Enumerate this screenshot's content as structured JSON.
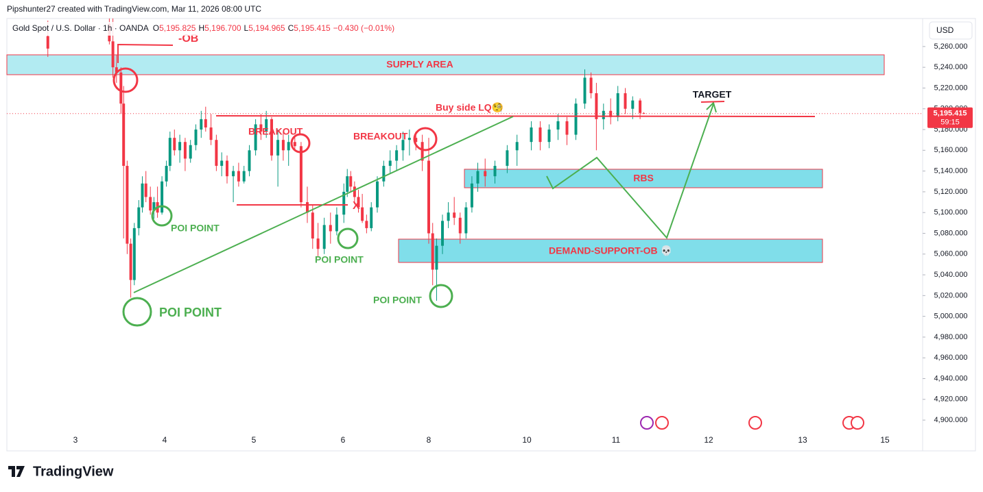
{
  "header": {
    "credit": "Pipshunter27 created with TradingView.com, Mar 11, 2026 08:00 UTC",
    "symbol": "Gold Spot / U.S. Dollar · 1h · OANDA",
    "ohlc": [
      [
        "O",
        "5,195.825"
      ],
      [
        "H",
        "5,196.700"
      ],
      [
        "L",
        "5,194.965"
      ],
      [
        "C",
        "5,195.415"
      ]
    ],
    "change": "−0.430 (−0.01%)"
  },
  "chart_data": {
    "type": "candlestick",
    "x": [
      2.69,
      3.38,
      3.42,
      3.46,
      3.51,
      3.54,
      3.58,
      3.62,
      3.66,
      3.71,
      3.75,
      3.79,
      3.84,
      3.88,
      3.92,
      3.97,
      4.02,
      4.06,
      4.11,
      4.17,
      4.23,
      4.29,
      4.35,
      4.41,
      4.46,
      4.52,
      4.58,
      4.64,
      4.7,
      4.77,
      4.83,
      4.89,
      4.95,
      5.02,
      5.08,
      5.14,
      5.2,
      5.27,
      5.33,
      5.39,
      5.46,
      5.53,
      5.6,
      5.66,
      5.72,
      5.79,
      5.86,
      5.93,
      6.02,
      6.1,
      6.18,
      6.27,
      6.36,
      6.45,
      6.55,
      6.66,
      6.8,
      6.95,
      7.1,
      7.25,
      7.4,
      7.55,
      7.7,
      7.85,
      8.0,
      8.08,
      8.16,
      8.28,
      8.4,
      8.52,
      8.64,
      8.76,
      8.88,
      9.0,
      9.15,
      9.35,
      9.6,
      9.8,
      10.05,
      10.15,
      10.25,
      10.35,
      10.45,
      10.55,
      10.65,
      10.72,
      10.78,
      10.86,
      10.94,
      11.02,
      11.1,
      11.18,
      11.26,
      11.3
    ],
    "open": [
      5270,
      5282,
      5265,
      5240,
      5235,
      5205,
      5145,
      5070,
      5035,
      5085,
      5105,
      5128,
      5115,
      5102,
      5110,
      5100,
      5130,
      5145,
      5172,
      5160,
      5168,
      5152,
      5165,
      5180,
      5190,
      5182,
      5170,
      5145,
      5150,
      5135,
      5140,
      5130,
      5140,
      5160,
      5185,
      5178,
      5190,
      5155,
      5170,
      5160,
      5168,
      5164,
      5110,
      5100,
      5075,
      5065,
      5088,
      5082,
      5098,
      5120,
      5135,
      5125,
      5115,
      5105,
      5092,
      5085,
      5105,
      5130,
      5145,
      5150,
      5160,
      5170,
      5172,
      5168,
      5150,
      5080,
      5045,
      5068,
      5092,
      5100,
      5095,
      5080,
      5105,
      5128,
      5140,
      5135,
      5145,
      5160,
      5168,
      5182,
      5168,
      5180,
      5188,
      5175,
      5205,
      5230,
      5215,
      5190,
      5198,
      5192,
      5215,
      5200,
      5208,
      5195.825
    ],
    "high": [
      5285,
      5287,
      5287,
      5252,
      5240,
      5222,
      5150,
      5075,
      5090,
      5112,
      5135,
      5140,
      5125,
      5115,
      5125,
      5135,
      5150,
      5178,
      5180,
      5175,
      5172,
      5170,
      5185,
      5198,
      5202,
      5195,
      5175,
      5158,
      5155,
      5145,
      5148,
      5145,
      5165,
      5190,
      5195,
      5198,
      5192,
      5180,
      5178,
      5175,
      5174,
      5168,
      5125,
      5108,
      5090,
      5095,
      5100,
      5105,
      5128,
      5142,
      5140,
      5130,
      5122,
      5118,
      5098,
      5110,
      5135,
      5150,
      5160,
      5165,
      5178,
      5180,
      5178,
      5175,
      5172,
      5090,
      5075,
      5098,
      5110,
      5115,
      5100,
      5110,
      5135,
      5148,
      5152,
      5150,
      5165,
      5175,
      5188,
      5188,
      5185,
      5195,
      5192,
      5210,
      5238,
      5235,
      5225,
      5205,
      5210,
      5222,
      5220,
      5212,
      5210,
      5196.7
    ],
    "low": [
      5250,
      5262,
      5230,
      5225,
      5195,
      5075,
      5060,
      5018,
      5030,
      5078,
      5100,
      5110,
      5098,
      5094,
      5095,
      5098,
      5125,
      5140,
      5155,
      5148,
      5140,
      5148,
      5160,
      5172,
      5178,
      5165,
      5140,
      5135,
      5128,
      5110,
      5125,
      5128,
      5135,
      5155,
      5170,
      5172,
      5150,
      5125,
      5150,
      5145,
      5160,
      5105,
      5090,
      5065,
      5058,
      5060,
      5070,
      5078,
      5090,
      5115,
      5120,
      5108,
      5100,
      5090,
      5080,
      5082,
      5100,
      5125,
      5138,
      5140,
      5150,
      5155,
      5160,
      5140,
      5070,
      5030,
      5015,
      5060,
      5085,
      5088,
      5070,
      5075,
      5100,
      5120,
      5125,
      5128,
      5138,
      5145,
      5160,
      5160,
      5162,
      5170,
      5165,
      5170,
      5200,
      5210,
      5160,
      5180,
      5185,
      5188,
      5195,
      5190,
      5190,
      5194.965
    ],
    "close": [
      5258,
      5265,
      5240,
      5235,
      5205,
      5145,
      5070,
      5035,
      5085,
      5105,
      5128,
      5115,
      5102,
      5110,
      5100,
      5130,
      5145,
      5172,
      5160,
      5168,
      5152,
      5165,
      5180,
      5190,
      5182,
      5170,
      5145,
      5150,
      5135,
      5140,
      5130,
      5140,
      5160,
      5185,
      5178,
      5190,
      5155,
      5170,
      5160,
      5168,
      5164,
      5110,
      5100,
      5075,
      5065,
      5088,
      5082,
      5098,
      5120,
      5135,
      5125,
      5115,
      5105,
      5092,
      5085,
      5105,
      5130,
      5145,
      5150,
      5160,
      5170,
      5172,
      5168,
      5150,
      5080,
      5045,
      5068,
      5092,
      5100,
      5095,
      5080,
      5105,
      5128,
      5140,
      5135,
      5145,
      5160,
      5168,
      5182,
      5168,
      5180,
      5188,
      5175,
      5205,
      5230,
      5215,
      5190,
      5198,
      5192,
      5215,
      5200,
      5208,
      5196,
      5195.415
    ],
    "up_color": "#089981",
    "down_color": "#f23645",
    "xlim": [
      2.23,
      15.9
    ],
    "xticks": [
      3,
      4,
      5,
      6,
      8,
      10,
      11,
      12,
      13,
      15
    ],
    "ylim": [
      4871,
      5287
    ],
    "yticks": [
      {
        "value": 4900,
        "label": "4,900.000"
      },
      {
        "value": 4920,
        "label": "4,920.000"
      },
      {
        "value": 4940,
        "label": "4,940.000"
      },
      {
        "value": 4960,
        "label": "4,960.000"
      },
      {
        "value": 4980,
        "label": "4,980.000"
      },
      {
        "value": 5000,
        "label": "5,000.000"
      },
      {
        "value": 5020,
        "label": "5,020.000"
      },
      {
        "value": 5040,
        "label": "5,040.000"
      },
      {
        "value": 5060,
        "label": "5,060.000"
      },
      {
        "value": 5080,
        "label": "5,080.000"
      },
      {
        "value": 5100,
        "label": "5,100.000"
      },
      {
        "value": 5120,
        "label": "5,120.000"
      },
      {
        "value": 5140,
        "label": "5,140.000"
      },
      {
        "value": 5160,
        "label": "5,160.000"
      },
      {
        "value": 5180,
        "label": "5,180.000"
      },
      {
        "value": 5200,
        "label": "5,200.000"
      },
      {
        "value": 5220,
        "label": "5,220.000"
      },
      {
        "value": 5240,
        "label": "5,240.000"
      },
      {
        "value": 5260,
        "label": "5,260.000"
      }
    ],
    "currency": "USD",
    "last_price": {
      "value": 5195.415,
      "label": "5,195.415"
    },
    "countdown": "59:15",
    "annotations": [
      "-OB",
      "SUPPLY AREA",
      "Buy side LQ🧐",
      "BREAKOUT",
      "BREAKOUT",
      "X",
      "POI POINT",
      "POI POINT",
      "POI POINT",
      "POI POINT",
      "RBS",
      "DEMAND-SUPPORT-OB 💀",
      "TARGET"
    ]
  },
  "footer": {
    "brand": "TradingView"
  }
}
